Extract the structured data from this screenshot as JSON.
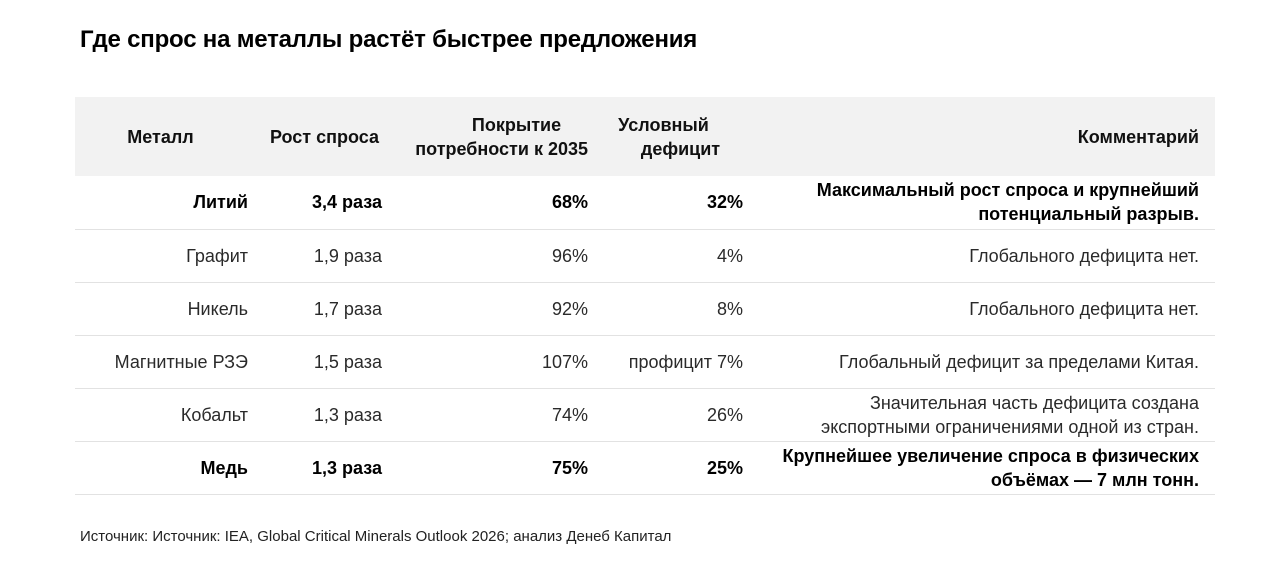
{
  "title": "Где спрос на металлы растёт быстрее предложения",
  "table": {
    "headers": {
      "metal": "Металл",
      "growth": "Рост спроса",
      "coverage_line1": "Покрытие",
      "coverage_line2": "потребности к 2035",
      "deficit_line1": "Условный",
      "deficit_line2": "дефицит",
      "comment": "Комментарий"
    },
    "rows": [
      {
        "metal": "Литий",
        "growth": "3,4 раза",
        "coverage": "68%",
        "deficit": "32%",
        "comment_line1": "Максимальный рост спроса и крупнейший",
        "comment_line2": "потенциальный разрыв.",
        "emphasis": true
      },
      {
        "metal": "Графит",
        "growth": "1,9 раза",
        "coverage": "96%",
        "deficit": "4%",
        "comment_line1": "Глобального дефицита нет.",
        "comment_line2": "",
        "emphasis": false
      },
      {
        "metal": "Никель",
        "growth": "1,7 раза",
        "coverage": "92%",
        "deficit": "8%",
        "comment_line1": "Глобального дефицита нет.",
        "comment_line2": "",
        "emphasis": false
      },
      {
        "metal": "Магнитные РЗЭ",
        "growth": "1,5 раза",
        "coverage": "107%",
        "deficit": "профицит 7%",
        "comment_line1": "Глобальный дефицит  за пределами Китая.",
        "comment_line2": "",
        "emphasis": false
      },
      {
        "metal": "Кобальт",
        "growth": "1,3 раза",
        "coverage": "74%",
        "deficit": "26%",
        "comment_line1": "Значительная часть дефицита создана",
        "comment_line2": "экспортными ограничениями одной из стран.",
        "emphasis": false
      },
      {
        "metal": "Медь",
        "growth": "1,3 раза",
        "coverage": "75%",
        "deficit": "25%",
        "comment_line1": "Крупнейшее увеличение спроса в физических",
        "comment_line2": "объёмах — 7 млн тонн.",
        "emphasis": true
      }
    ]
  },
  "source": "Источник: Источник: IEA, Global Critical Minerals Outlook 2026; анализ Денеб Капитал"
}
